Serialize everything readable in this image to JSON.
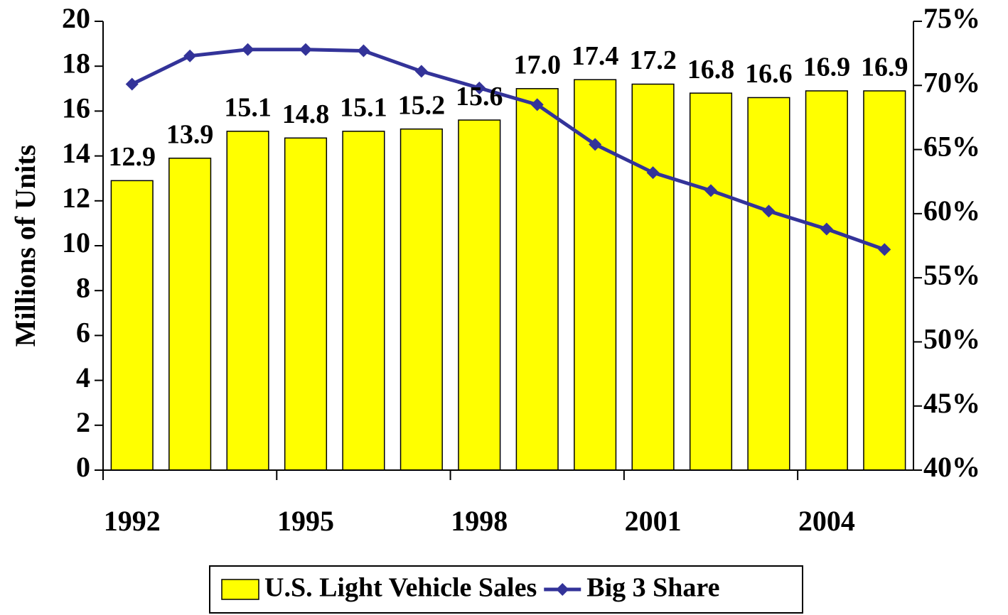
{
  "chart_data": {
    "type": "bar",
    "y_label": "Millions of Units",
    "categories": [
      "1992",
      null,
      null,
      "1995",
      null,
      null,
      "1998",
      null,
      null,
      "2001",
      null,
      null,
      "2004",
      null
    ],
    "series": [
      {
        "name": "U.S. Light Vehicle Sales",
        "type": "bar",
        "color": "#ffff00",
        "values": [
          12.9,
          13.9,
          15.1,
          14.8,
          15.1,
          15.2,
          15.6,
          17.0,
          17.4,
          17.2,
          16.8,
          16.6,
          16.9,
          16.9
        ],
        "value_labels": [
          "12.9",
          "13.9",
          "15.1",
          "14.8",
          "15.1",
          "15.2",
          "15.6",
          "17.0",
          "17.4",
          "17.2",
          "16.8",
          "16.6",
          "16.9",
          "16.9"
        ]
      },
      {
        "name": "Big 3 Share",
        "type": "line",
        "axis": "y2",
        "color": "#333399",
        "values": [
          70.1,
          72.3,
          72.8,
          72.8,
          72.7,
          71.1,
          69.8,
          68.5,
          65.4,
          63.2,
          61.8,
          60.2,
          58.8,
          57.2
        ]
      }
    ],
    "ylim": [
      0,
      20
    ],
    "yticks": [
      0,
      2,
      4,
      6,
      8,
      10,
      12,
      14,
      16,
      18,
      20
    ],
    "y2lim": [
      40,
      75
    ],
    "y2ticks": [
      {
        "value": 40,
        "label": "40%"
      },
      {
        "value": 45,
        "label": "45%"
      },
      {
        "value": 50,
        "label": "50%"
      },
      {
        "value": 55,
        "label": "55%"
      },
      {
        "value": 60,
        "label": "60%"
      },
      {
        "value": 65,
        "label": "65%"
      },
      {
        "value": 70,
        "label": "70%"
      },
      {
        "value": 75,
        "label": "75%"
      }
    ],
    "legend": "bottom"
  }
}
